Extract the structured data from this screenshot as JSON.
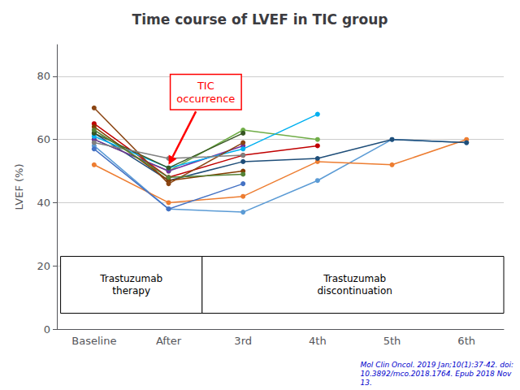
{
  "chart_data": {
    "type": "line",
    "title": "Time course of LVEF in TIC group",
    "ylabel": "LVEF (%)",
    "categories": [
      "Baseline",
      "After",
      "3rd",
      "4th",
      "5th",
      "6th"
    ],
    "series": [
      {
        "color": "#5b9bd5",
        "values": [
          58,
          38,
          37,
          47,
          60,
          59
        ]
      },
      {
        "color": "#ed7d31",
        "values": [
          52,
          40,
          42,
          53,
          52,
          60
        ]
      },
      {
        "color": "#1f4e79",
        "values": [
          62,
          47,
          53,
          54,
          60,
          59
        ]
      },
      {
        "color": "#70ad47",
        "values": [
          60,
          50,
          63,
          60,
          null,
          null
        ]
      },
      {
        "color": "#c00000",
        "values": [
          65,
          48,
          55,
          58,
          null,
          null
        ]
      },
      {
        "color": "#7030a0",
        "values": [
          60,
          50,
          58,
          null,
          null,
          null
        ]
      },
      {
        "color": "#00b0f0",
        "values": [
          61,
          51,
          57,
          68,
          null,
          null
        ]
      },
      {
        "color": "#833c00",
        "values": [
          64,
          47,
          50,
          null,
          null,
          null
        ]
      },
      {
        "color": "#375623",
        "values": [
          62,
          51,
          62,
          null,
          null,
          null
        ]
      },
      {
        "color": "#8b4513",
        "values": [
          70,
          46,
          59,
          null,
          null,
          null
        ]
      },
      {
        "color": "#4472c4",
        "values": [
          57,
          38,
          46,
          null,
          null,
          null
        ]
      },
      {
        "color": "#808080",
        "values": [
          59,
          54,
          55,
          null,
          null,
          null
        ]
      },
      {
        "color": "#548235",
        "values": [
          63,
          48,
          49,
          null,
          null,
          null
        ]
      }
    ],
    "ylim": [
      0,
      90
    ],
    "yticks": [
      0,
      20,
      40,
      60,
      80
    ],
    "grid": true,
    "marker": "circle",
    "line_style": "solid",
    "annotations": [
      {
        "text": "TIC\noccurrence",
        "color": "red"
      },
      {
        "text": "Trastuzumab\ntherapy"
      },
      {
        "text": "Trastuzumab\ndiscontinuation"
      }
    ],
    "citation": "Mol Clin Oncol. 2019 Jan;10(1):37-42. doi:\n10.3892/mco.2018.1764. Epub 2018 Nov\n13."
  }
}
